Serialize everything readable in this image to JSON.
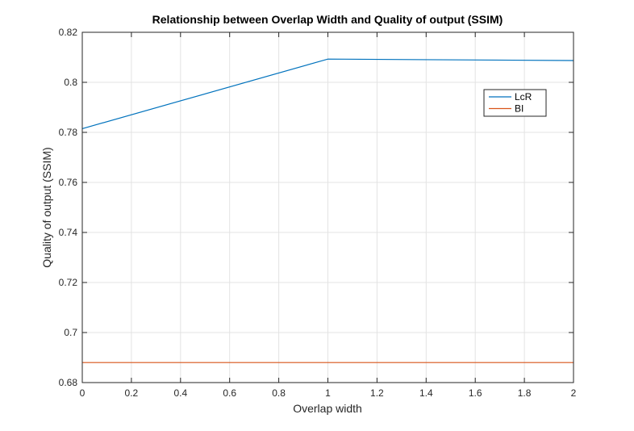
{
  "chart_data": {
    "type": "line",
    "title": "Relationship between Overlap Width and Quality of output (SSIM)",
    "xlabel": "Overlap width",
    "ylabel": "Quality of output (SSIM)",
    "xlim": [
      0,
      2
    ],
    "ylim": [
      0.68,
      0.82
    ],
    "xticks": [
      "0",
      "0.2",
      "0.4",
      "0.6",
      "0.8",
      "1",
      "1.2",
      "1.4",
      "1.6",
      "1.8",
      "2"
    ],
    "yticks": [
      "0.68",
      "0.7",
      "0.72",
      "0.74",
      "0.76",
      "0.78",
      "0.8",
      "0.82"
    ],
    "grid": true,
    "legend_position": "top-right",
    "series": [
      {
        "name": "LcR",
        "color": "#0072BD",
        "x": [
          0,
          1,
          2
        ],
        "y": [
          0.7815,
          0.8093,
          0.8087
        ]
      },
      {
        "name": "BI",
        "color": "#D95319",
        "x": [
          0,
          1,
          2
        ],
        "y": [
          0.688,
          0.688,
          0.688
        ]
      }
    ]
  }
}
